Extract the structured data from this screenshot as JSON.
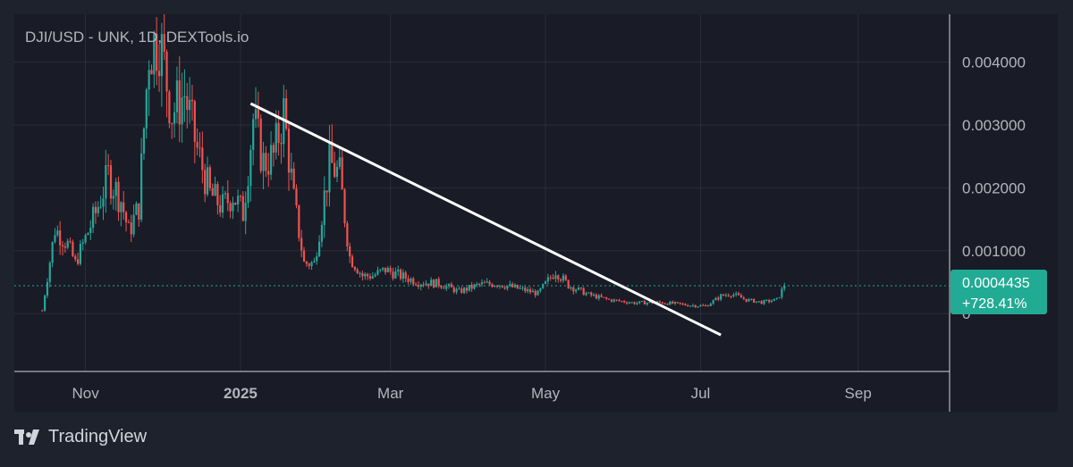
{
  "chart_data": {
    "type": "candlestick",
    "title": "DJI/USD - UNK, 1D, DEXTools.io",
    "x_labels": [
      {
        "label": "Nov",
        "date": "2024-11-01",
        "bold": false
      },
      {
        "label": "2025",
        "date": "2025-01-01",
        "bold": true
      },
      {
        "label": "Mar",
        "date": "2025-03-01",
        "bold": false
      },
      {
        "label": "May",
        "date": "2025-05-01",
        "bold": false
      },
      {
        "label": "Jul",
        "date": "2025-07-01",
        "bold": false
      },
      {
        "label": "Sep",
        "date": "2025-09-01",
        "bold": false
      }
    ],
    "x_range": [
      "2024-10-04",
      "2025-10-07"
    ],
    "y_ticks": [
      "0.004000",
      "0.003000",
      "0.002000",
      "0.001000",
      "0"
    ],
    "y_tick_values": [
      0.004,
      0.003,
      0.002,
      0.001,
      0
    ],
    "ylim": [
      -0.00092,
      0.00476
    ],
    "current_price": {
      "value": 0.0004435,
      "label": "0.0004435",
      "change": "+728.41%"
    },
    "trendline": {
      "start": [
        "2025-01-05",
        0.00334
      ],
      "end": [
        "2025-07-09",
        -0.00034
      ],
      "color": "#ffffff"
    },
    "colors": {
      "up": "#26a69a",
      "down": "#ef5350",
      "background": "#1e222d",
      "grid": "#2a2e39",
      "price_tag": "#22ab94",
      "axis_text": "#b2b5be"
    },
    "price_series": {
      "name": "DJI/USD",
      "x": [
        "2024-10-15",
        "2024-10-20",
        "2024-10-25",
        "2024-10-28",
        "2024-11-01",
        "2024-11-05",
        "2024-11-10",
        "2024-11-15",
        "2024-11-18",
        "2024-11-22",
        "2024-11-26",
        "2024-11-30",
        "2024-12-05",
        "2024-12-10",
        "2024-12-15",
        "2024-12-20",
        "2024-12-25",
        "2024-12-29",
        "2025-01-02",
        "2025-01-06",
        "2025-01-10",
        "2025-01-14",
        "2025-01-18",
        "2025-01-22",
        "2025-01-26",
        "2025-01-30",
        "2025-02-05",
        "2025-02-09",
        "2025-02-13",
        "2025-02-18",
        "2025-02-22",
        "2025-02-27",
        "2025-03-05",
        "2025-03-12",
        "2025-03-20",
        "2025-03-28",
        "2025-04-05",
        "2025-04-12",
        "2025-04-20",
        "2025-04-28",
        "2025-05-05",
        "2025-05-10",
        "2025-05-18",
        "2025-05-26",
        "2025-06-05",
        "2025-06-15",
        "2025-06-25",
        "2025-07-03",
        "2025-07-09",
        "2025-07-13",
        "2025-07-19",
        "2025-07-25",
        "2025-07-31",
        "2025-08-03"
      ],
      "close": [
        5e-05,
        0.00135,
        0.0011,
        0.0008,
        0.0012,
        0.0016,
        0.0022,
        0.0018,
        0.0013,
        0.0017,
        0.0042,
        0.0044,
        0.0032,
        0.0035,
        0.0026,
        0.0019,
        0.0017,
        0.0019,
        0.0016,
        0.0031,
        0.0024,
        0.0025,
        0.0032,
        0.0018,
        0.0008,
        0.0008,
        0.0024,
        0.0022,
        0.0009,
        0.0006,
        0.0006,
        0.0007,
        0.0006,
        0.0005,
        0.00048,
        0.00035,
        0.00046,
        0.00048,
        0.0004,
        0.00032,
        0.00068,
        0.00045,
        0.0003,
        0.00022,
        0.00017,
        0.00018,
        0.00014,
        0.00012,
        0.00028,
        0.00032,
        0.00022,
        0.00018,
        0.00022,
        0.00044
      ]
    }
  },
  "branding": {
    "name": "TradingView"
  }
}
